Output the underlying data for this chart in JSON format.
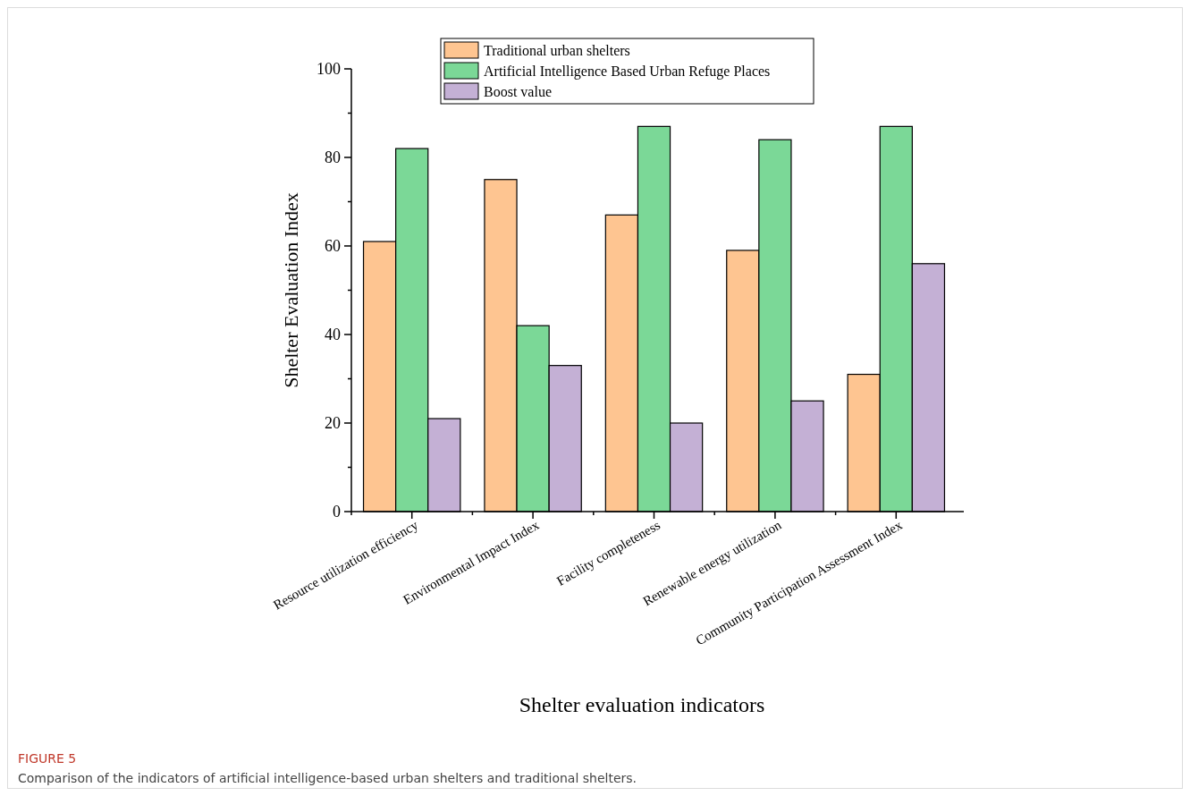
{
  "chart_data": {
    "type": "bar",
    "title": "FIGURE 5",
    "subtitle": "Comparison of the indicators of artificial intelligence-based urban shelters and traditional shelters.",
    "xlabel": "Shelter evaluation indicators",
    "ylabel": "Shelter Evaluation Index",
    "categories": [
      "Resource utilization efficiency",
      "Environmental Impact Index",
      "Facility completeness",
      "Renewable energy utilization",
      "Community Participation Assessment Index"
    ],
    "series": [
      {
        "name": "Traditional urban shelters",
        "color": "#fec591",
        "values": [
          61,
          75,
          67,
          59,
          31
        ]
      },
      {
        "name": "Artificial Intelligence Based Urban Refuge Places",
        "color": "#7bd897",
        "values": [
          82,
          42,
          87,
          84,
          87
        ]
      },
      {
        "name": "Boost value",
        "color": "#c4b0d5",
        "values": [
          21,
          33,
          20,
          25,
          56
        ]
      }
    ],
    "ylim": [
      0,
      100
    ],
    "yticks": [
      0,
      {
        "value": 10,
        "label": null
      },
      20,
      {
        "value": 30,
        "label": null
      },
      40,
      {
        "value": 50,
        "label": null
      },
      60,
      {
        "value": 70,
        "label": null
      },
      80,
      {
        "value": 90,
        "label": null
      },
      100
    ],
    "grid": false,
    "legend": "top"
  }
}
